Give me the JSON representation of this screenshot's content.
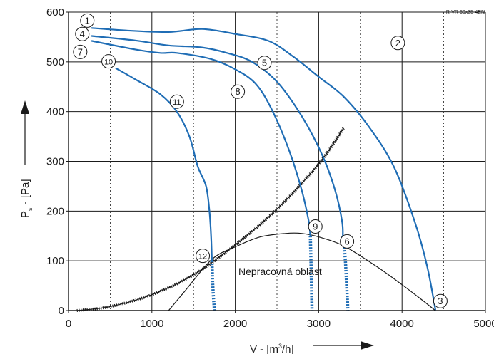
{
  "chart_data": {
    "type": "line",
    "model_label": "R-VR 60x35-4EN",
    "xlabel_html": "V - [m³/h]",
    "xlabel_main": "V - [m",
    "xlabel_sup": "3",
    "xlabel_end": "/h]",
    "ylabel_main": "P",
    "ylabel_sub": "s",
    "ylabel_end": " - [Pa]",
    "region_label": "Nepracovná oblast",
    "xlim": [
      0,
      5000
    ],
    "ylim": [
      0,
      600
    ],
    "x_ticks": [
      0,
      1000,
      2000,
      3000,
      4000,
      5000
    ],
    "y_ticks": [
      0,
      100,
      200,
      300,
      400,
      500,
      600
    ],
    "grid": {
      "solid_x": [
        1000,
        2000,
        3000,
        4000,
        5000
      ],
      "dashed_x": [
        500,
        1500,
        2500,
        3500,
        4500
      ],
      "solid_y": [
        100,
        200,
        300,
        400,
        500,
        600
      ]
    },
    "colors": {
      "fan_curve": "#1f6db5",
      "system_curve": "#1a1a1a",
      "axis": "#1a1a1a",
      "grid": "#1a1a1a"
    },
    "fan_curves": [
      {
        "id": "top",
        "points": [
          [
            280,
            568
          ],
          [
            700,
            563
          ],
          [
            1200,
            560
          ],
          [
            1600,
            566
          ],
          [
            2000,
            556
          ],
          [
            2400,
            542
          ],
          [
            2700,
            510
          ],
          [
            3000,
            470
          ],
          [
            3300,
            430
          ],
          [
            3600,
            370
          ],
          [
            3900,
            290
          ],
          [
            4150,
            180
          ],
          [
            4300,
            90
          ],
          [
            4400,
            2
          ]
        ]
      },
      {
        "id": "second",
        "points": [
          [
            280,
            552
          ],
          [
            800,
            543
          ],
          [
            1200,
            533
          ],
          [
            1600,
            529
          ],
          [
            1900,
            518
          ],
          [
            2200,
            500
          ],
          [
            2500,
            460
          ],
          [
            2800,
            390
          ],
          [
            3050,
            310
          ],
          [
            3200,
            240
          ],
          [
            3280,
            180
          ],
          [
            3290,
            150
          ]
        ]
      },
      {
        "id": "third",
        "points": [
          [
            280,
            542
          ],
          [
            800,
            525
          ],
          [
            1100,
            518
          ],
          [
            1300,
            518
          ],
          [
            1700,
            506
          ],
          [
            2000,
            485
          ],
          [
            2250,
            455
          ],
          [
            2450,
            400
          ],
          [
            2650,
            320
          ],
          [
            2800,
            240
          ],
          [
            2880,
            180
          ],
          [
            2900,
            150
          ]
        ]
      },
      {
        "id": "fourth",
        "points": [
          [
            570,
            487
          ],
          [
            800,
            465
          ],
          [
            1100,
            435
          ],
          [
            1300,
            400
          ],
          [
            1450,
            350
          ],
          [
            1550,
            290
          ],
          [
            1650,
            250
          ],
          [
            1690,
            200
          ],
          [
            1710,
            150
          ],
          [
            1720,
            100
          ]
        ]
      }
    ],
    "fan_curve_tails": [
      {
        "points": [
          [
            3290,
            150
          ],
          [
            3320,
            100
          ],
          [
            3350,
            0
          ]
        ]
      },
      {
        "points": [
          [
            2900,
            150
          ],
          [
            2910,
            80
          ],
          [
            2920,
            0
          ]
        ]
      },
      {
        "points": [
          [
            1720,
            100
          ],
          [
            1730,
            50
          ],
          [
            1750,
            0
          ]
        ]
      }
    ],
    "system_curve": {
      "points": [
        [
          100,
          0
        ],
        [
          500,
          8
        ],
        [
          1000,
          32
        ],
        [
          1500,
          72
        ],
        [
          2000,
          132
        ],
        [
          2500,
          204
        ],
        [
          3000,
          295
        ],
        [
          3300,
          367
        ]
      ]
    },
    "boundary_curve": {
      "points": [
        [
          1200,
          0
        ],
        [
          1400,
          40
        ],
        [
          1720,
          103
        ],
        [
          2000,
          128
        ],
        [
          2300,
          148
        ],
        [
          2600,
          155
        ],
        [
          2800,
          155
        ],
        [
          3000,
          148
        ],
        [
          3300,
          130
        ],
        [
          3700,
          88
        ],
        [
          4000,
          52
        ],
        [
          4250,
          20
        ],
        [
          4400,
          0
        ]
      ]
    },
    "curve_labels": [
      {
        "label": "1",
        "x": 225,
        "y": 583
      },
      {
        "label": "2",
        "x": 3950,
        "y": 538
      },
      {
        "label": "3",
        "x": 4460,
        "y": 19
      },
      {
        "label": "4",
        "x": 165,
        "y": 556
      },
      {
        "label": "5",
        "x": 2350,
        "y": 498
      },
      {
        "label": "6",
        "x": 3340,
        "y": 139
      },
      {
        "label": "7",
        "x": 140,
        "y": 520
      },
      {
        "label": "8",
        "x": 2030,
        "y": 440
      },
      {
        "label": "9",
        "x": 2960,
        "y": 169
      },
      {
        "label": "10",
        "x": 480,
        "y": 501
      },
      {
        "label": "11",
        "x": 1300,
        "y": 420
      },
      {
        "label": "12",
        "x": 1610,
        "y": 110
      }
    ]
  }
}
